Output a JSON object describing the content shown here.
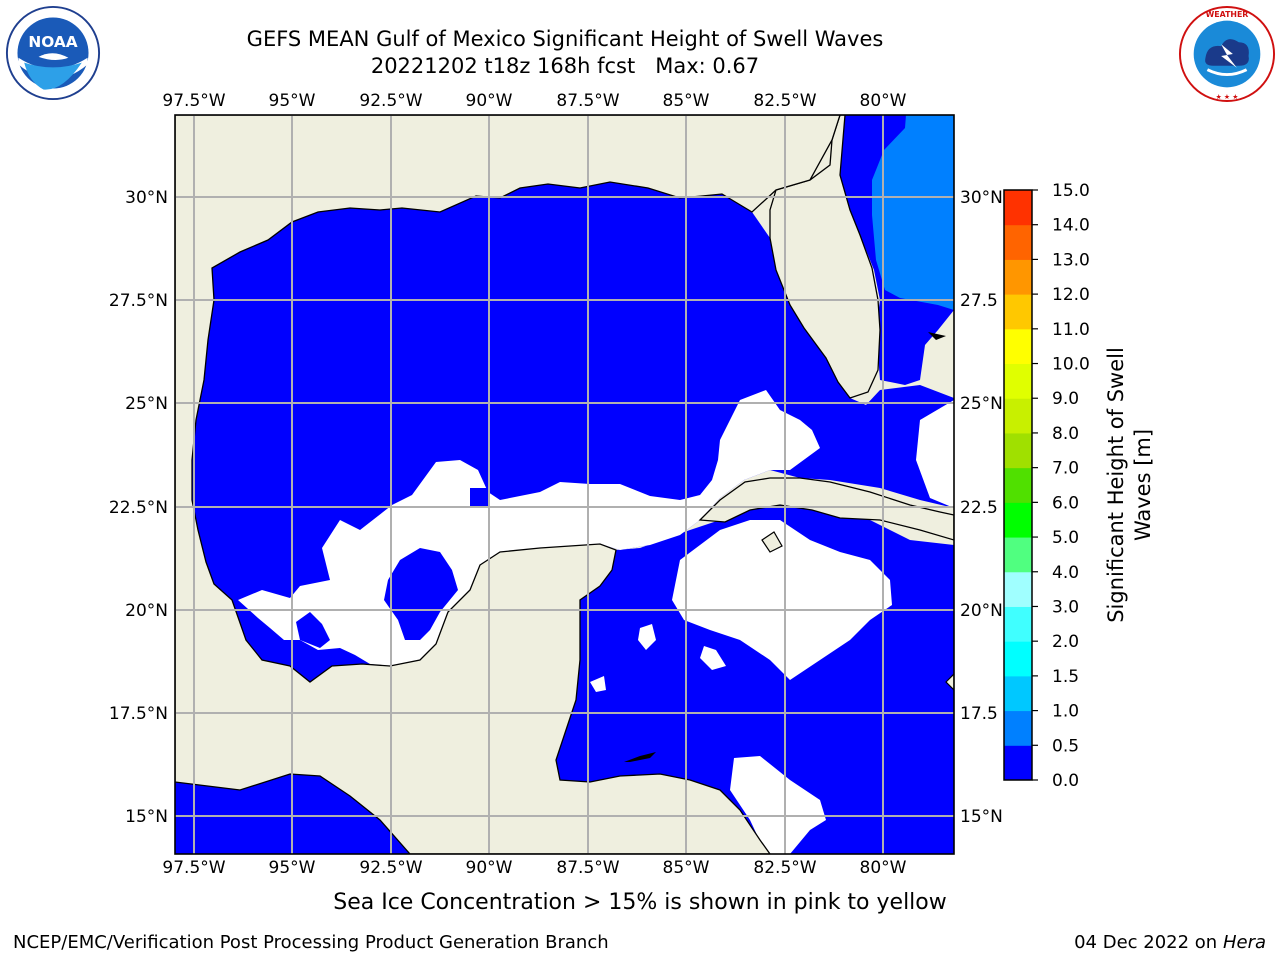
{
  "title_line1": "GEFS MEAN Gulf of Mexico Significant Height of Swell Waves",
  "title_line2_part1": "20221202 t18z 168h fcst",
  "title_line2_part2": "Max: 0.67",
  "subtitle": "Sea Ice Concentration > 15% is shown in pink to yellow",
  "footer_left": "NCEP/EMC/Verification Post Processing Product Generation Branch",
  "footer_date": "04 Dec 2022 on",
  "footer_host": "Hera",
  "logos": {
    "left": "noaa-logo",
    "right": "national-weather-service-logo"
  },
  "colors": {
    "land": "#efefdf",
    "ocean_low": "#0000ff",
    "ocean_mid": "#0080ff",
    "grid": "#b0b0b0",
    "missing": "#ffffff"
  },
  "chart_data": {
    "type": "heatmap",
    "projection": "lat-lon",
    "lon_range": [
      -98,
      -78
    ],
    "lat_range": [
      14,
      32
    ],
    "lon_ticks": [
      "97.5°W",
      "95°W",
      "92.5°W",
      "90°W",
      "87.5°W",
      "85°W",
      "82.5°W",
      "80°W"
    ],
    "lat_ticks": [
      "30°N",
      "27.5°N",
      "25°N",
      "22.5°N",
      "20°N",
      "17.5°N",
      "15°N"
    ],
    "lat_ticks_right": [
      "30°N",
      "27.5",
      "25°N",
      "22.5",
      "20°N",
      "17.5",
      "15°N"
    ],
    "grid": true,
    "max_value": 0.67,
    "colorbar": {
      "label_line1": "Significant Height of Swell",
      "label_line2": "Waves [m]",
      "levels": [
        0.0,
        0.5,
        1.0,
        1.5,
        2.0,
        3.0,
        4.0,
        5.0,
        6.0,
        7.0,
        8.0,
        9.0,
        10.0,
        11.0,
        12.0,
        13.0,
        14.0,
        15.0
      ],
      "tick_labels": [
        "0.0",
        "0.5",
        "1.0",
        "1.5",
        "2.0",
        "3.0",
        "4.0",
        "5.0",
        "6.0",
        "7.0",
        "8.0",
        "9.0",
        "10.0",
        "11.0",
        "12.0",
        "13.0",
        "14.0",
        "15.0"
      ],
      "colors": [
        "#0000ff",
        "#0080ff",
        "#00c8ff",
        "#00ffff",
        "#40ffff",
        "#a0ffff",
        "#50ff80",
        "#00ff00",
        "#50e000",
        "#a0e000",
        "#c8f000",
        "#e0ff00",
        "#ffff00",
        "#ffc800",
        "#ff9600",
        "#ff6400",
        "#ff3200",
        "#ff0000"
      ]
    },
    "regions": [
      {
        "name": "gulf-of-mexico",
        "value_range": "0.0-0.5"
      },
      {
        "name": "atlantic-off-florida",
        "value_range": "0.5-1.0"
      },
      {
        "name": "caribbean-sea",
        "value_range": "0.0-0.5"
      },
      {
        "name": "campeche-bank-missing",
        "value_range": "no data"
      },
      {
        "name": "cayman-area-missing",
        "value_range": "no data"
      }
    ]
  }
}
